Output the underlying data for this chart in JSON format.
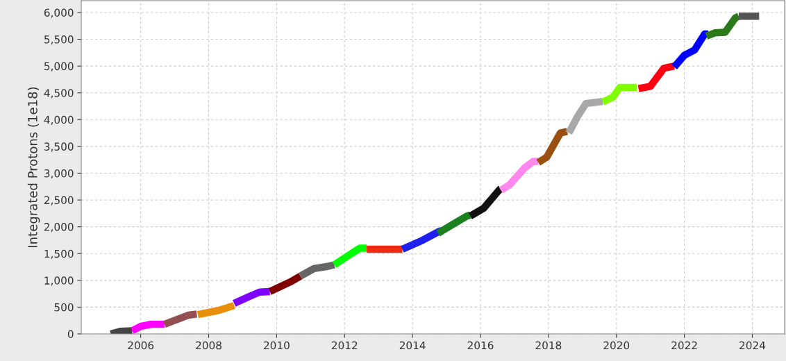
{
  "chart_data": {
    "type": "line",
    "ylabel": "Integrated Protons (1e18)",
    "xlim": [
      2004.25,
      2024.95
    ],
    "ylim": [
      0,
      6220
    ],
    "xticks": [
      2006,
      2008,
      2010,
      2012,
      2014,
      2016,
      2018,
      2020,
      2022,
      2024
    ],
    "yticks": [
      0,
      500,
      {
        "value": 1000,
        "label": "1,000"
      },
      {
        "value": 1500,
        "label": "1,500"
      },
      {
        "value": 2000,
        "label": "2,000"
      },
      {
        "value": 2500,
        "label": "2,500"
      },
      {
        "value": 3000,
        "label": "3,000"
      },
      {
        "value": 3500,
        "label": "3,500"
      },
      {
        "value": 4000,
        "label": "4,000"
      },
      {
        "value": 4500,
        "label": "4,500"
      },
      {
        "value": 5000,
        "label": "5,000"
      },
      {
        "value": 5500,
        "label": "5,500"
      },
      {
        "value": 6000,
        "label": "6,000"
      }
    ],
    "grid": true,
    "marker": "none",
    "line_style": "solid",
    "series": [
      {
        "color": "#444444",
        "x": [
          2005.12,
          2005.4,
          2005.75
        ],
        "values": [
          0,
          50,
          60
        ]
      },
      {
        "color": "#ff00ff",
        "x": [
          2005.75,
          2006.0,
          2006.3,
          2006.7
        ],
        "values": [
          60,
          140,
          180,
          180
        ]
      },
      {
        "color": "#945050",
        "x": [
          2006.7,
          2007.4,
          2007.65
        ],
        "values": [
          180,
          350,
          370
        ]
      },
      {
        "color": "#e8900a",
        "x": [
          2007.68,
          2008.3,
          2008.75
        ],
        "values": [
          360,
          440,
          530
        ]
      },
      {
        "color": "#8000ff",
        "x": [
          2008.75,
          2009.2,
          2009.5,
          2009.8
        ],
        "values": [
          570,
          700,
          780,
          790
        ]
      },
      {
        "color": "#800000",
        "x": [
          2009.8,
          2010.4,
          2010.7
        ],
        "values": [
          790,
          970,
          1080
        ]
      },
      {
        "color": "#666666",
        "x": [
          2010.7,
          2011.1,
          2011.5,
          2011.7
        ],
        "values": [
          1080,
          1220,
          1260,
          1290
        ]
      },
      {
        "color": "#00ff00",
        "x": [
          2011.7,
          2012.2,
          2012.45,
          2012.65
        ],
        "values": [
          1290,
          1500,
          1600,
          1600
        ]
      },
      {
        "color": "#ee2a10",
        "x": [
          2012.65,
          2013.7
        ],
        "values": [
          1580,
          1580
        ]
      },
      {
        "color": "#2020ee",
        "x": [
          2013.7,
          2014.3,
          2014.8,
          2014.9
        ],
        "values": [
          1580,
          1750,
          1920,
          1930
        ]
      },
      {
        "color": "#1a8020",
        "x": [
          2014.75,
          2015.2,
          2015.6,
          2015.7
        ],
        "values": [
          1880,
          2050,
          2200,
          2220
        ]
      },
      {
        "color": "#111111",
        "x": [
          2015.7,
          2016.1,
          2016.5,
          2016.6
        ],
        "values": [
          2200,
          2350,
          2650,
          2720
        ]
      },
      {
        "color": "#ff88ee",
        "x": [
          2016.6,
          2016.85,
          2017.3,
          2017.55,
          2017.7
        ],
        "values": [
          2680,
          2780,
          3100,
          3220,
          3220
        ]
      },
      {
        "color": "#9a5010",
        "x": [
          2017.7,
          2017.95,
          2018.35,
          2018.55
        ],
        "values": [
          3200,
          3300,
          3750,
          3780
        ]
      },
      {
        "color": "#a8a8a8",
        "x": [
          2018.6,
          2018.85,
          2019.1,
          2019.6
        ],
        "values": [
          3750,
          4050,
          4300,
          4340
        ]
      },
      {
        "color": "#80ff00",
        "x": [
          2019.6,
          2019.9,
          2020.1,
          2020.6
        ],
        "values": [
          4330,
          4420,
          4600,
          4600
        ]
      },
      {
        "color": "#ff0010",
        "x": [
          2020.65,
          2021.0,
          2021.4,
          2021.7
        ],
        "values": [
          4580,
          4620,
          4960,
          5000
        ]
      },
      {
        "color": "#0000ff",
        "x": [
          2021.7,
          2022.0,
          2022.3,
          2022.6,
          2022.7
        ],
        "values": [
          4980,
          5200,
          5300,
          5600,
          5600
        ]
      },
      {
        "color": "#2a7a1a",
        "x": [
          2022.65,
          2022.9,
          2023.2,
          2023.5,
          2023.6
        ],
        "values": [
          5560,
          5620,
          5630,
          5900,
          5930
        ]
      },
      {
        "color": "#555555",
        "x": [
          2023.6,
          2024.2
        ],
        "values": [
          5930,
          5930
        ]
      }
    ]
  }
}
